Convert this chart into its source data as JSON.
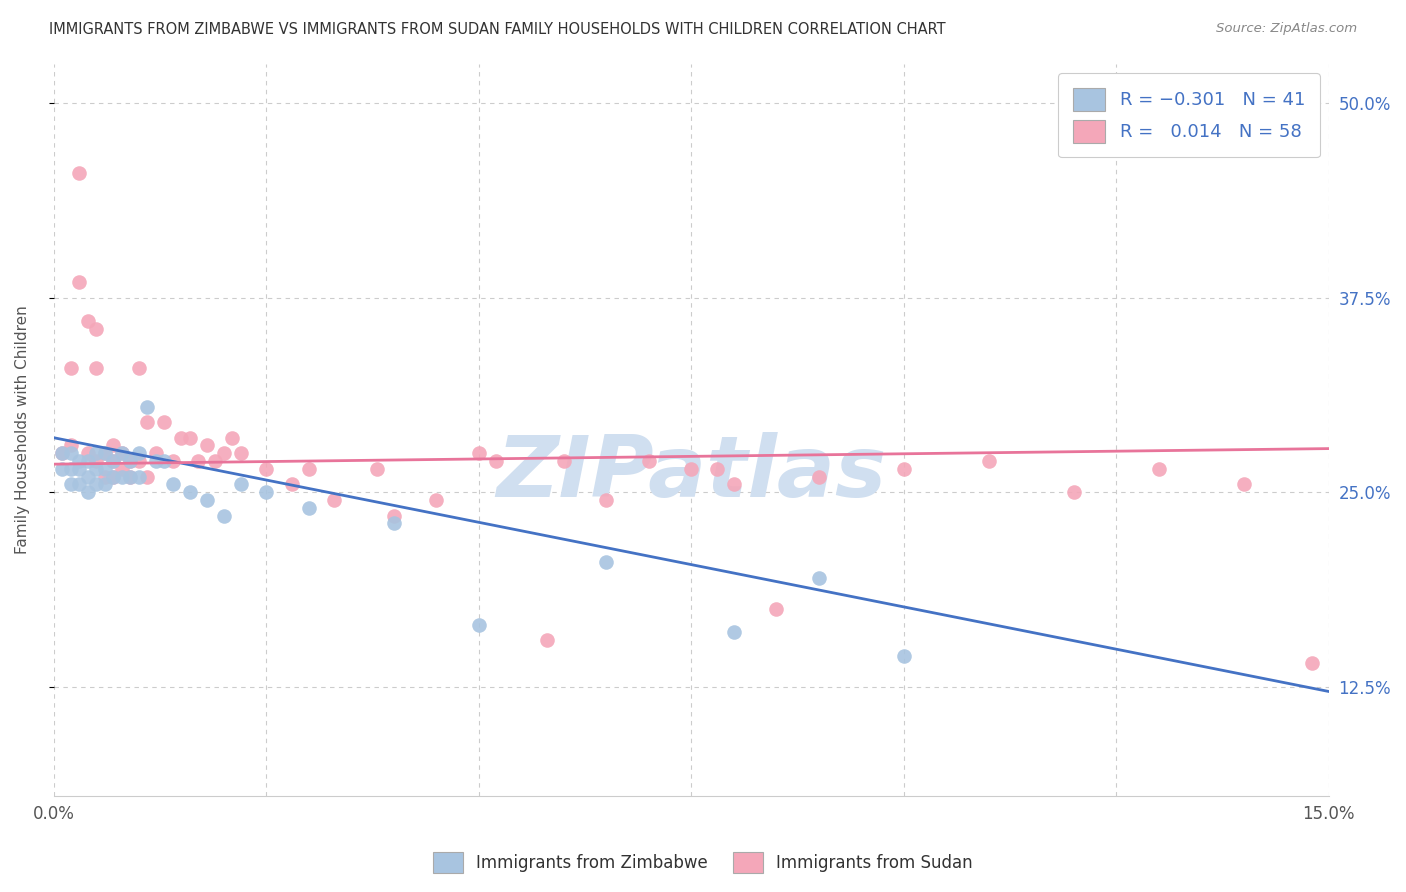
{
  "title": "IMMIGRANTS FROM ZIMBABWE VS IMMIGRANTS FROM SUDAN FAMILY HOUSEHOLDS WITH CHILDREN CORRELATION CHART",
  "source": "Source: ZipAtlas.com",
  "ylabel": "Family Households with Children",
  "xlim": [
    0.0,
    0.15
  ],
  "ylim": [
    0.055,
    0.525
  ],
  "color_zimbabwe": "#a8c4e0",
  "color_sudan": "#f4a7b9",
  "line_zimbabwe": "#4472c4",
  "line_sudan": "#e8749a",
  "zimbabwe_line_x": [
    0.0,
    0.15
  ],
  "zimbabwe_line_y": [
    0.285,
    0.122
  ],
  "sudan_line_x": [
    0.0,
    0.15
  ],
  "sudan_line_y": [
    0.268,
    0.278
  ],
  "zimbabwe_x": [
    0.001,
    0.001,
    0.002,
    0.002,
    0.002,
    0.003,
    0.003,
    0.003,
    0.004,
    0.004,
    0.004,
    0.005,
    0.005,
    0.005,
    0.006,
    0.006,
    0.006,
    0.007,
    0.007,
    0.008,
    0.008,
    0.009,
    0.009,
    0.01,
    0.01,
    0.011,
    0.012,
    0.013,
    0.014,
    0.016,
    0.018,
    0.02,
    0.022,
    0.025,
    0.03,
    0.04,
    0.05,
    0.065,
    0.08,
    0.09,
    0.1
  ],
  "zimbabwe_y": [
    0.275,
    0.265,
    0.275,
    0.265,
    0.255,
    0.27,
    0.265,
    0.255,
    0.27,
    0.26,
    0.25,
    0.275,
    0.265,
    0.255,
    0.275,
    0.265,
    0.255,
    0.27,
    0.26,
    0.275,
    0.26,
    0.27,
    0.26,
    0.275,
    0.26,
    0.305,
    0.27,
    0.27,
    0.255,
    0.25,
    0.245,
    0.235,
    0.255,
    0.25,
    0.24,
    0.23,
    0.165,
    0.205,
    0.16,
    0.195,
    0.145
  ],
  "sudan_x": [
    0.001,
    0.002,
    0.002,
    0.003,
    0.003,
    0.004,
    0.004,
    0.005,
    0.005,
    0.005,
    0.006,
    0.006,
    0.007,
    0.007,
    0.007,
    0.008,
    0.008,
    0.009,
    0.009,
    0.01,
    0.01,
    0.011,
    0.011,
    0.012,
    0.013,
    0.014,
    0.015,
    0.016,
    0.017,
    0.018,
    0.019,
    0.02,
    0.021,
    0.022,
    0.025,
    0.028,
    0.03,
    0.033,
    0.038,
    0.04,
    0.045,
    0.05,
    0.052,
    0.058,
    0.06,
    0.065,
    0.07,
    0.075,
    0.078,
    0.08,
    0.085,
    0.09,
    0.1,
    0.11,
    0.12,
    0.13,
    0.14,
    0.148
  ],
  "sudan_y": [
    0.275,
    0.28,
    0.33,
    0.455,
    0.385,
    0.36,
    0.275,
    0.355,
    0.33,
    0.27,
    0.275,
    0.26,
    0.28,
    0.27,
    0.26,
    0.275,
    0.265,
    0.27,
    0.26,
    0.33,
    0.27,
    0.295,
    0.26,
    0.275,
    0.295,
    0.27,
    0.285,
    0.285,
    0.27,
    0.28,
    0.27,
    0.275,
    0.285,
    0.275,
    0.265,
    0.255,
    0.265,
    0.245,
    0.265,
    0.235,
    0.245,
    0.275,
    0.27,
    0.155,
    0.27,
    0.245,
    0.27,
    0.265,
    0.265,
    0.255,
    0.175,
    0.26,
    0.265,
    0.27,
    0.25,
    0.265,
    0.255,
    0.14
  ],
  "watermark_text": "ZIPatlas",
  "watermark_color": "#d0dff0",
  "background_color": "#ffffff",
  "grid_color": "#cccccc",
  "x_ticks": [
    0.0,
    0.025,
    0.05,
    0.075,
    0.1,
    0.125,
    0.15
  ],
  "y_ticks": [
    0.125,
    0.25,
    0.375,
    0.5
  ],
  "y_tick_labels": [
    "12.5%",
    "25.0%",
    "37.5%",
    "50.0%"
  ],
  "tick_color": "#4472c4"
}
